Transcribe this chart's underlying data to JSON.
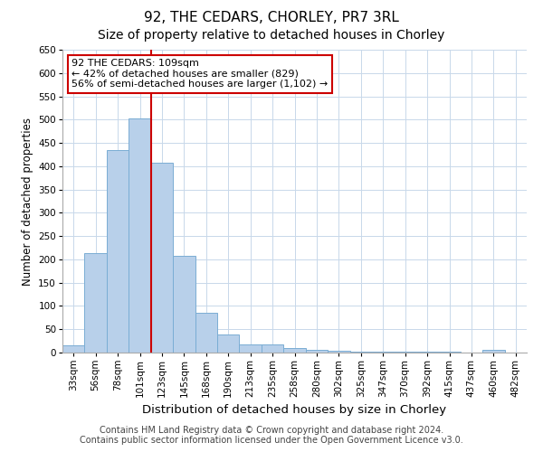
{
  "title": "92, THE CEDARS, CHORLEY, PR7 3RL",
  "subtitle": "Size of property relative to detached houses in Chorley",
  "xlabel": "Distribution of detached houses by size in Chorley",
  "ylabel": "Number of detached properties",
  "categories": [
    "33sqm",
    "56sqm",
    "78sqm",
    "101sqm",
    "123sqm",
    "145sqm",
    "168sqm",
    "190sqm",
    "213sqm",
    "235sqm",
    "258sqm",
    "280sqm",
    "302sqm",
    "325sqm",
    "347sqm",
    "370sqm",
    "392sqm",
    "415sqm",
    "437sqm",
    "460sqm",
    "482sqm"
  ],
  "values": [
    15,
    213,
    435,
    502,
    407,
    207,
    85,
    38,
    18,
    18,
    10,
    5,
    3,
    2,
    1,
    1,
    1,
    1,
    0,
    5,
    0
  ],
  "bar_color": "#b8d0ea",
  "bar_edge_color": "#7aadd4",
  "vline_color": "#cc0000",
  "annotation_text": "92 THE CEDARS: 109sqm\n← 42% of detached houses are smaller (829)\n56% of semi-detached houses are larger (1,102) →",
  "annotation_box_color": "#ffffff",
  "annotation_box_edgecolor": "#cc0000",
  "ylim": [
    0,
    650
  ],
  "yticks": [
    0,
    50,
    100,
    150,
    200,
    250,
    300,
    350,
    400,
    450,
    500,
    550,
    600,
    650
  ],
  "footer_line1": "Contains HM Land Registry data © Crown copyright and database right 2024.",
  "footer_line2": "Contains public sector information licensed under the Open Government Licence v3.0.",
  "background_color": "#ffffff",
  "grid_color": "#c8d8ea",
  "title_fontsize": 11,
  "subtitle_fontsize": 10,
  "xlabel_fontsize": 9.5,
  "ylabel_fontsize": 8.5,
  "tick_fontsize": 7.5,
  "annotation_fontsize": 8,
  "footer_fontsize": 7
}
